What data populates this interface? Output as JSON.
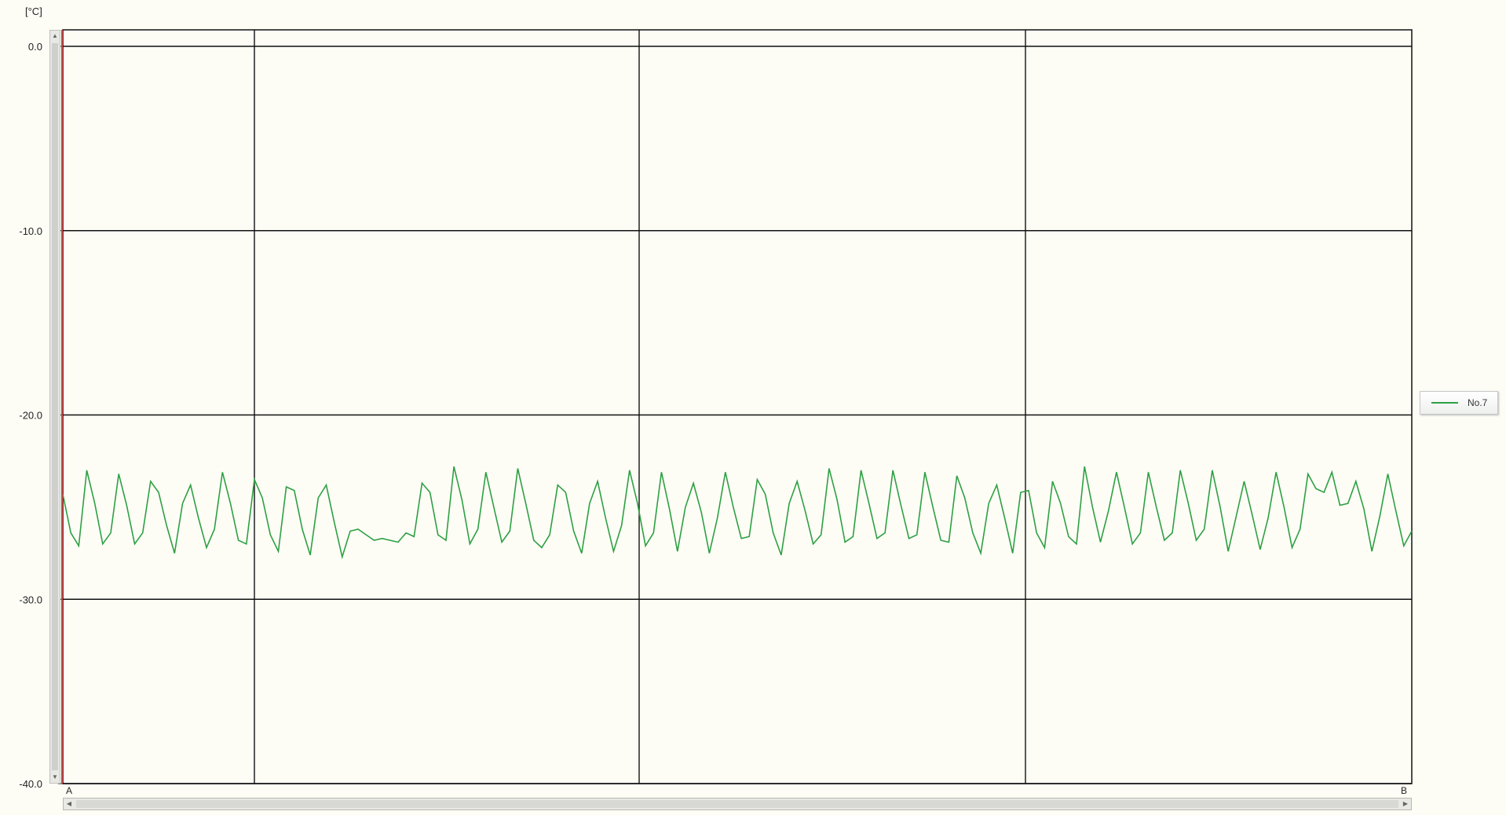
{
  "chart_data": {
    "type": "line",
    "unit": "[°C]",
    "ylim": [
      -40,
      0
    ],
    "yticks": [
      0,
      -10,
      -20,
      -30,
      -40
    ],
    "ytick_labels": [
      "0.0",
      "-10.0",
      "-20.0",
      "-30.0",
      "-40.0"
    ],
    "grid": true,
    "legend_position": "right",
    "cursor_labels": [
      "A",
      "B"
    ],
    "series": [
      {
        "name": "No.7",
        "color": "#2ea043",
        "values": [
          -24.3,
          -26.4,
          -27.1,
          -23.0,
          -24.8,
          -27.0,
          -26.4,
          -23.2,
          -24.9,
          -27.0,
          -26.4,
          -23.6,
          -24.2,
          -26.0,
          -27.5,
          -24.8,
          -23.8,
          -25.6,
          -27.2,
          -26.2,
          -23.1,
          -24.8,
          -26.8,
          -27.0,
          -23.5,
          -24.5,
          -26.5,
          -27.4,
          -23.9,
          -24.1,
          -26.2,
          -27.6,
          -24.5,
          -23.8,
          -25.8,
          -27.7,
          -26.3,
          -26.2,
          -26.5,
          -26.8,
          -26.7,
          -26.8,
          -26.9,
          -26.4,
          -26.6,
          -23.7,
          -24.2,
          -26.5,
          -26.8,
          -22.8,
          -24.6,
          -27.0,
          -26.2,
          -23.1,
          -25.0,
          -26.9,
          -26.3,
          -22.9,
          -24.8,
          -26.8,
          -27.2,
          -26.5,
          -23.8,
          -24.2,
          -26.3,
          -27.5,
          -24.8,
          -23.6,
          -25.6,
          -27.4,
          -26.0,
          -23.0,
          -24.8,
          -27.1,
          -26.4,
          -23.1,
          -25.1,
          -27.4,
          -25.0,
          -23.7,
          -25.3,
          -27.5,
          -25.6,
          -23.1,
          -25.0,
          -26.7,
          -26.6,
          -23.5,
          -24.3,
          -26.4,
          -27.6,
          -24.8,
          -23.6,
          -25.2,
          -27.0,
          -26.5,
          -22.9,
          -24.6,
          -26.9,
          -26.6,
          -23.0,
          -24.8,
          -26.7,
          -26.4,
          -23.0,
          -24.9,
          -26.7,
          -26.5,
          -23.1,
          -25.0,
          -26.8,
          -26.9,
          -23.3,
          -24.5,
          -26.4,
          -27.5,
          -24.8,
          -23.8,
          -25.6,
          -27.5,
          -24.2,
          -24.1,
          -26.4,
          -27.2,
          -23.6,
          -24.8,
          -26.6,
          -27.0,
          -22.8,
          -25.0,
          -26.9,
          -25.2,
          -23.1,
          -25.0,
          -27.0,
          -26.4,
          -23.1,
          -25.0,
          -26.8,
          -26.4,
          -23.0,
          -24.8,
          -26.8,
          -26.2,
          -23.0,
          -25.0,
          -27.4,
          -25.5,
          -23.6,
          -25.4,
          -27.3,
          -25.6,
          -23.1,
          -25.0,
          -27.2,
          -26.2,
          -23.2,
          -24.0,
          -24.2,
          -23.1,
          -24.9,
          -24.8,
          -23.6,
          -25.1,
          -27.4,
          -25.5,
          -23.2,
          -25.2,
          -27.1,
          -26.3
        ]
      }
    ]
  }
}
